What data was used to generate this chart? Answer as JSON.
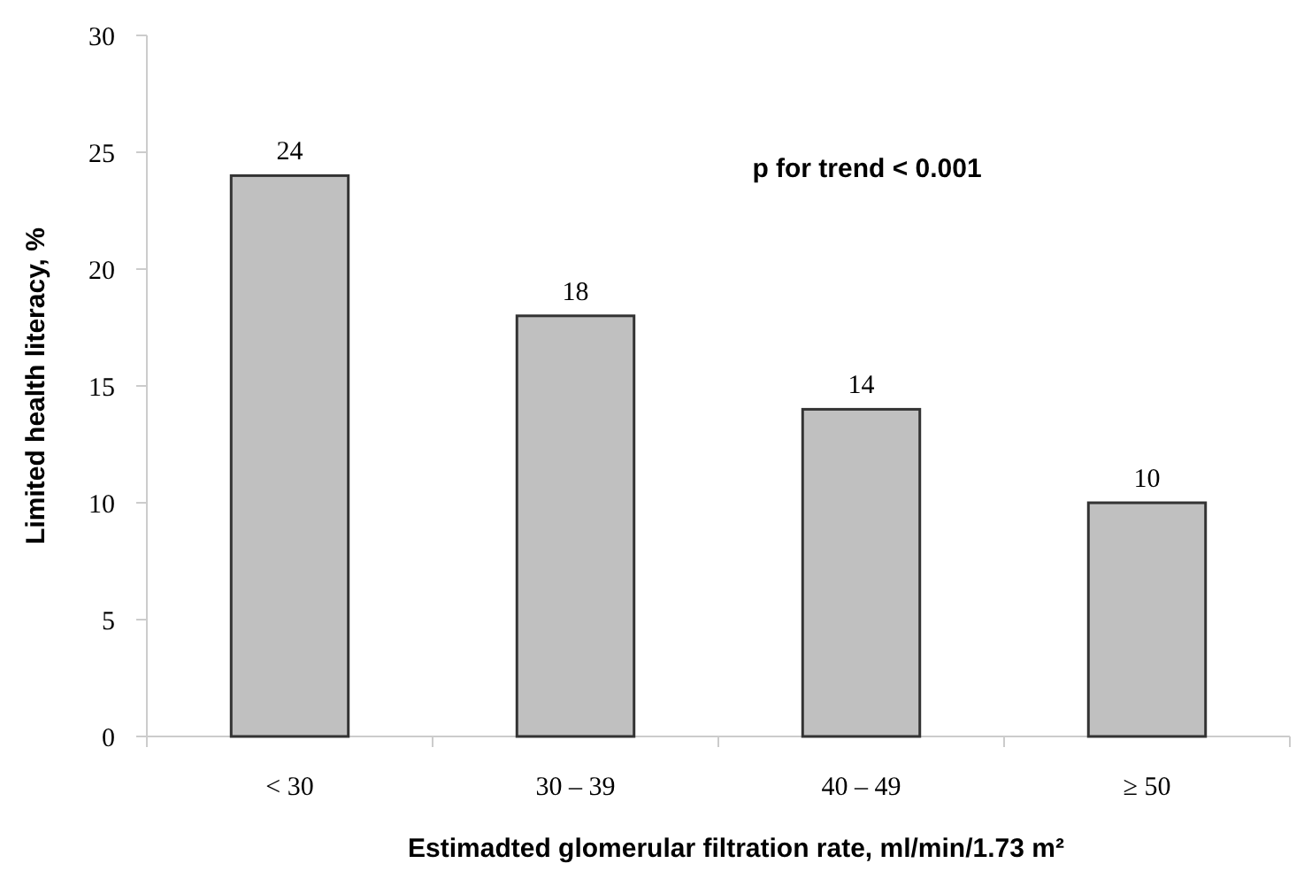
{
  "chart_data": {
    "type": "bar",
    "xlabel": "Estimadted glomerular filtration rate, ml/min/1.73 m²",
    "ylabel": "Limited health literacy, %",
    "categories": [
      "< 30",
      "30 – 39",
      "40 – 49",
      "≥ 50"
    ],
    "values": [
      24,
      18,
      14,
      10
    ],
    "color": "#c0c0c0",
    "data_labels": true,
    "ylim": [
      0,
      30
    ],
    "yticks": [
      0,
      5,
      10,
      15,
      20,
      25,
      30
    ],
    "annotations": [
      "p for trend < 0.001"
    ]
  }
}
